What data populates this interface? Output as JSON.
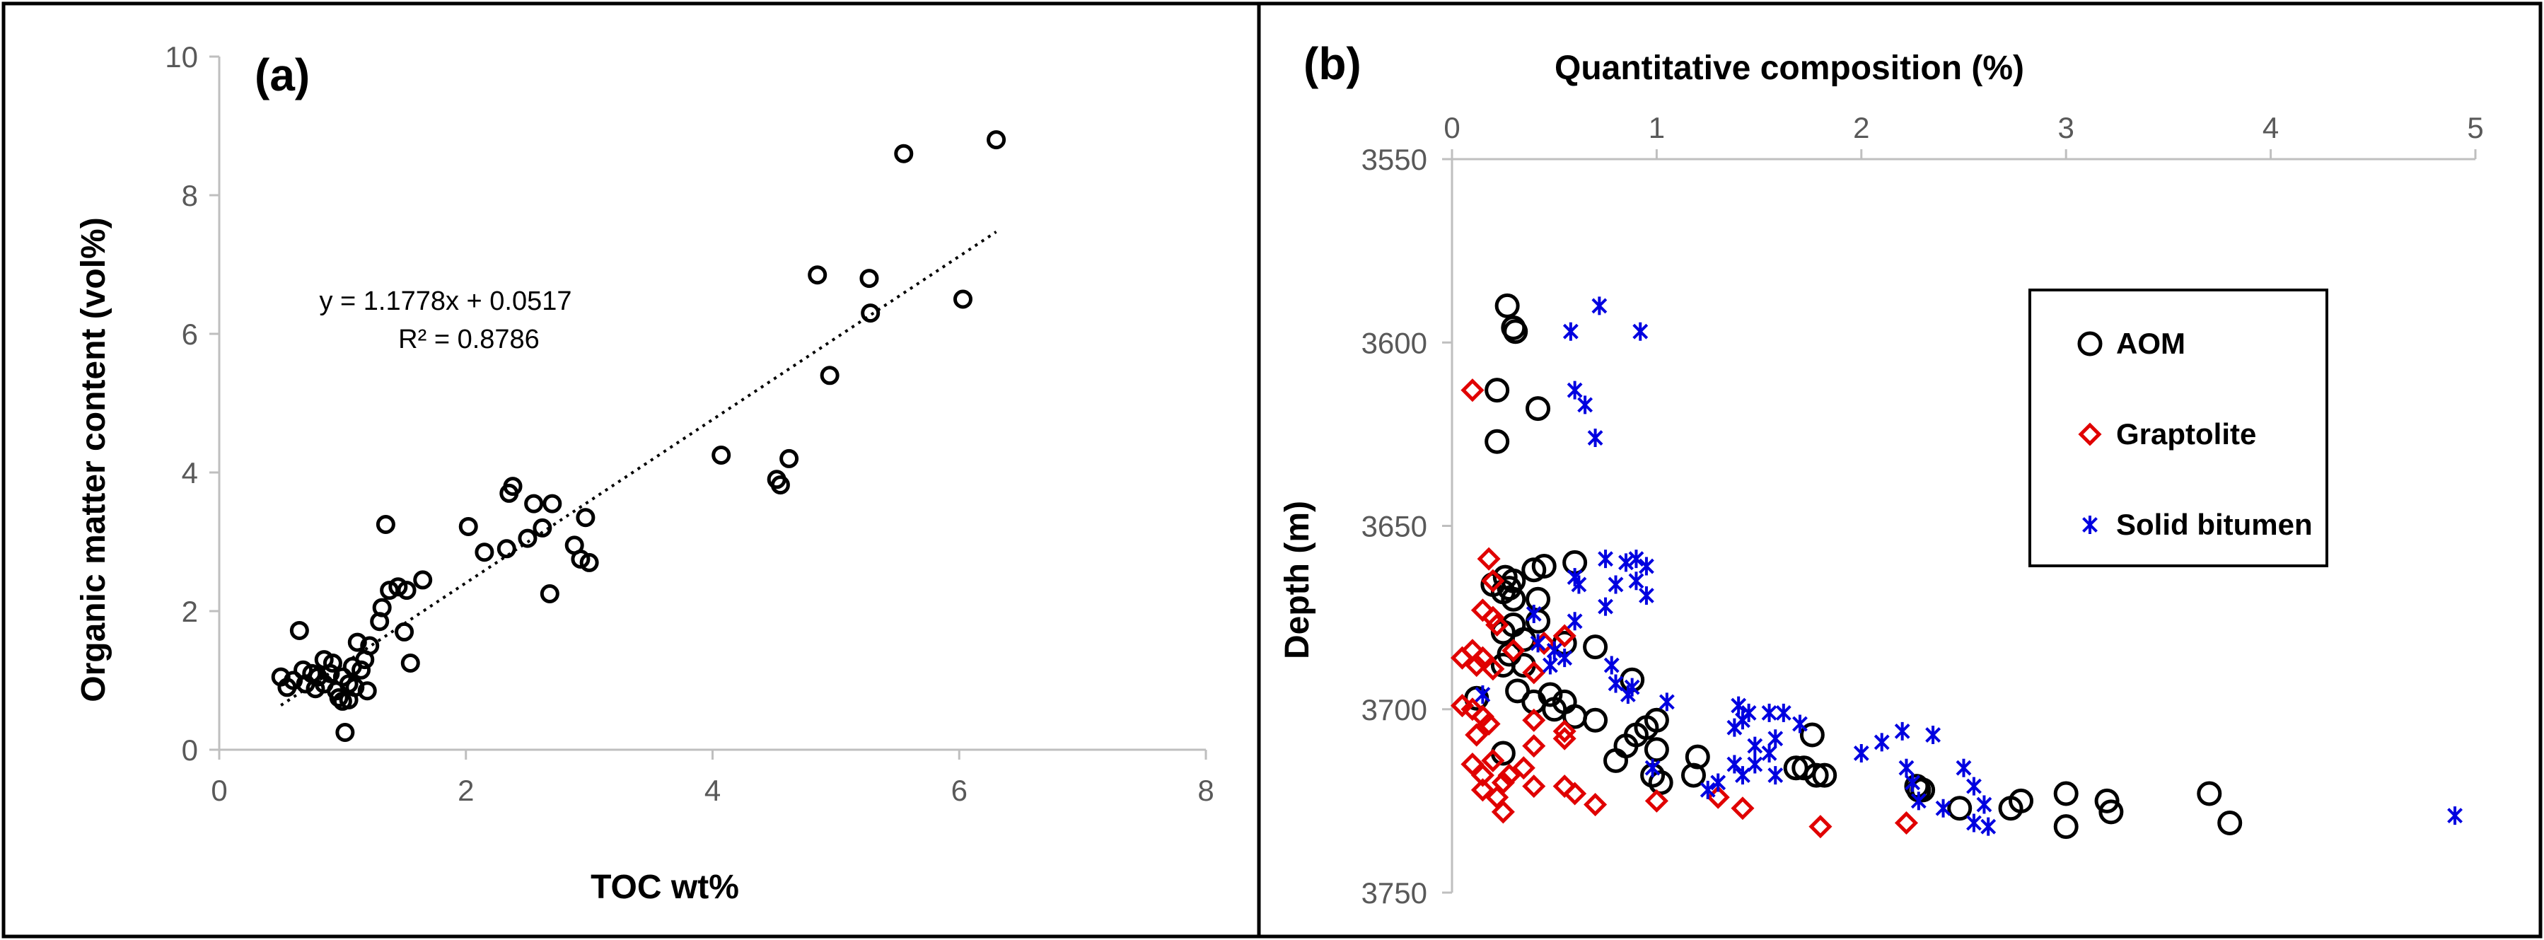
{
  "chart_data": [
    {
      "type": "scatter",
      "panel_label": "(a)",
      "title": "",
      "xlabel": "TOC wt%",
      "ylabel": "Organic matter content (vol%)",
      "xlim": [
        0,
        8
      ],
      "ylim": [
        0,
        10
      ],
      "x_ticks": [
        "0",
        "2",
        "4",
        "6",
        "8"
      ],
      "y_ticks": [
        "0",
        "2",
        "4",
        "6",
        "8",
        "10"
      ],
      "grid": false,
      "series": [
        {
          "name": "samples",
          "marker": "circle",
          "color": "#000000",
          "points": [
            [
              0.5,
              1.05
            ],
            [
              0.55,
              0.9
            ],
            [
              0.6,
              1.0
            ],
            [
              0.65,
              1.72
            ],
            [
              0.68,
              1.15
            ],
            [
              0.7,
              0.95
            ],
            [
              0.75,
              1.1
            ],
            [
              0.78,
              0.88
            ],
            [
              0.8,
              1.05
            ],
            [
              0.85,
              1.3
            ],
            [
              0.85,
              0.95
            ],
            [
              0.9,
              1.1
            ],
            [
              0.92,
              1.25
            ],
            [
              0.95,
              0.85
            ],
            [
              0.97,
              0.75
            ],
            [
              1.0,
              1.05
            ],
            [
              1.0,
              0.7
            ],
            [
              1.02,
              0.25
            ],
            [
              1.05,
              0.95
            ],
            [
              1.05,
              0.72
            ],
            [
              1.08,
              1.2
            ],
            [
              1.1,
              0.9
            ],
            [
              1.12,
              1.55
            ],
            [
              1.15,
              1.15
            ],
            [
              1.18,
              1.3
            ],
            [
              1.2,
              0.85
            ],
            [
              1.22,
              1.5
            ],
            [
              1.3,
              1.85
            ],
            [
              1.32,
              2.05
            ],
            [
              1.35,
              3.25
            ],
            [
              1.38,
              2.3
            ],
            [
              1.45,
              2.35
            ],
            [
              1.5,
              1.7
            ],
            [
              1.52,
              2.3
            ],
            [
              1.55,
              1.25
            ],
            [
              1.65,
              2.45
            ],
            [
              2.02,
              3.22
            ],
            [
              2.15,
              2.85
            ],
            [
              2.33,
              2.9
            ],
            [
              2.35,
              3.7
            ],
            [
              2.38,
              3.8
            ],
            [
              2.5,
              3.05
            ],
            [
              2.55,
              3.55
            ],
            [
              2.62,
              3.2
            ],
            [
              2.68,
              2.25
            ],
            [
              2.7,
              3.55
            ],
            [
              2.88,
              2.95
            ],
            [
              2.93,
              2.75
            ],
            [
              2.97,
              3.35
            ],
            [
              3.0,
              2.7
            ],
            [
              4.07,
              4.25
            ],
            [
              4.52,
              3.9
            ],
            [
              4.55,
              3.82
            ],
            [
              4.62,
              4.2
            ],
            [
              4.85,
              6.85
            ],
            [
              4.95,
              5.4
            ],
            [
              5.27,
              6.8
            ],
            [
              5.28,
              6.3
            ],
            [
              5.55,
              8.6
            ],
            [
              6.03,
              6.5
            ],
            [
              6.3,
              8.8
            ]
          ]
        }
      ],
      "trendline": {
        "style": "dotted",
        "slope": 1.1778,
        "intercept": 0.0517,
        "x_range": [
          0.5,
          6.3
        ],
        "equation": "y = 1.1778x + 0.0517",
        "r_squared": "R² = 0.8786"
      }
    },
    {
      "type": "scatter",
      "panel_label": "(b)",
      "title": "",
      "xlabel": "Quantitative  composition (%)",
      "ylabel": "Depth (m)",
      "xlim": [
        0,
        5
      ],
      "ylim": [
        3550,
        3750
      ],
      "y_inverted": true,
      "x_axis_position": "top",
      "x_ticks": [
        "0",
        "1",
        "2",
        "3",
        "4",
        "5"
      ],
      "y_ticks": [
        "3550",
        "3600",
        "3650",
        "3700",
        "3750"
      ],
      "grid": false,
      "legend_position": "right",
      "series": [
        {
          "name": "AOM",
          "marker": "circle",
          "color": "#000000",
          "points": [
            [
              0.27,
              3590
            ],
            [
              0.3,
              3596
            ],
            [
              0.31,
              3597
            ],
            [
              0.22,
              3613
            ],
            [
              0.42,
              3618
            ],
            [
              0.22,
              3627
            ],
            [
              0.6,
              3660
            ],
            [
              0.45,
              3661
            ],
            [
              0.4,
              3662
            ],
            [
              0.26,
              3664
            ],
            [
              0.3,
              3665
            ],
            [
              0.2,
              3666
            ],
            [
              0.28,
              3667
            ],
            [
              0.25,
              3668
            ],
            [
              0.3,
              3670
            ],
            [
              0.42,
              3670
            ],
            [
              0.42,
              3676
            ],
            [
              0.3,
              3677
            ],
            [
              0.25,
              3679
            ],
            [
              0.35,
              3681
            ],
            [
              0.55,
              3682
            ],
            [
              0.7,
              3683
            ],
            [
              0.28,
              3685
            ],
            [
              0.25,
              3688
            ],
            [
              0.35,
              3688
            ],
            [
              0.88,
              3692
            ],
            [
              0.32,
              3695
            ],
            [
              0.48,
              3696
            ],
            [
              0.12,
              3697
            ],
            [
              0.4,
              3698
            ],
            [
              0.55,
              3698
            ],
            [
              0.5,
              3700
            ],
            [
              0.6,
              3702
            ],
            [
              0.7,
              3703
            ],
            [
              1.0,
              3703
            ],
            [
              0.95,
              3705
            ],
            [
              0.9,
              3707
            ],
            [
              0.85,
              3710
            ],
            [
              1.0,
              3711
            ],
            [
              0.8,
              3714
            ],
            [
              1.2,
              3713
            ],
            [
              0.25,
              3712
            ],
            [
              1.18,
              3718
            ],
            [
              0.98,
              3718
            ],
            [
              1.02,
              3720
            ],
            [
              1.68,
              3716
            ],
            [
              1.72,
              3716
            ],
            [
              1.78,
              3718
            ],
            [
              1.82,
              3718
            ],
            [
              1.76,
              3707
            ],
            [
              2.27,
              3721
            ],
            [
              2.28,
              3722
            ],
            [
              2.3,
              3722
            ],
            [
              2.48,
              3727
            ],
            [
              2.73,
              3727
            ],
            [
              2.78,
              3725
            ],
            [
              3.0,
              3723
            ],
            [
              3.2,
              3725
            ],
            [
              3.22,
              3728
            ],
            [
              3.0,
              3732
            ],
            [
              3.7,
              3723
            ],
            [
              3.8,
              3731
            ]
          ]
        },
        {
          "name": "Graptolite",
          "marker": "diamond",
          "color": "#e00000",
          "points": [
            [
              0.1,
              3613
            ],
            [
              0.18,
              3659
            ],
            [
              0.2,
              3665
            ],
            [
              0.15,
              3673
            ],
            [
              0.2,
              3675
            ],
            [
              0.22,
              3677
            ],
            [
              0.1,
              3684
            ],
            [
              0.05,
              3686
            ],
            [
              0.15,
              3686
            ],
            [
              0.12,
              3688
            ],
            [
              0.2,
              3689
            ],
            [
              0.3,
              3684
            ],
            [
              0.45,
              3682
            ],
            [
              0.55,
              3680
            ],
            [
              0.4,
              3690
            ],
            [
              0.05,
              3699
            ],
            [
              0.1,
              3700
            ],
            [
              0.15,
              3702
            ],
            [
              0.18,
              3704
            ],
            [
              0.4,
              3703
            ],
            [
              0.55,
              3706
            ],
            [
              0.4,
              3710
            ],
            [
              0.55,
              3708
            ],
            [
              0.12,
              3707
            ],
            [
              0.1,
              3715
            ],
            [
              0.2,
              3714
            ],
            [
              0.15,
              3718
            ],
            [
              0.28,
              3718
            ],
            [
              0.35,
              3716
            ],
            [
              0.25,
              3720
            ],
            [
              0.15,
              3722
            ],
            [
              0.22,
              3724
            ],
            [
              0.4,
              3721
            ],
            [
              0.55,
              3721
            ],
            [
              0.6,
              3723
            ],
            [
              0.7,
              3726
            ],
            [
              0.25,
              3728
            ],
            [
              1.0,
              3725
            ],
            [
              1.3,
              3724
            ],
            [
              1.42,
              3727
            ],
            [
              1.8,
              3732
            ],
            [
              2.22,
              3731
            ]
          ]
        },
        {
          "name": "Solid bitumen",
          "marker": "asterisk",
          "color": "#0000e0",
          "points": [
            [
              0.72,
              3590
            ],
            [
              0.92,
              3597
            ],
            [
              0.58,
              3597
            ],
            [
              0.6,
              3613
            ],
            [
              0.65,
              3617
            ],
            [
              0.7,
              3626
            ],
            [
              0.75,
              3659
            ],
            [
              0.85,
              3660
            ],
            [
              0.9,
              3659
            ],
            [
              0.95,
              3661
            ],
            [
              0.6,
              3664
            ],
            [
              0.62,
              3666
            ],
            [
              0.8,
              3666
            ],
            [
              0.9,
              3665
            ],
            [
              0.95,
              3669
            ],
            [
              0.75,
              3672
            ],
            [
              0.6,
              3676
            ],
            [
              0.4,
              3674
            ],
            [
              0.42,
              3682
            ],
            [
              0.48,
              3688
            ],
            [
              0.55,
              3686
            ],
            [
              0.5,
              3684
            ],
            [
              0.78,
              3688
            ],
            [
              0.8,
              3693
            ],
            [
              0.88,
              3694
            ],
            [
              0.86,
              3696
            ],
            [
              0.15,
              3696
            ],
            [
              1.05,
              3698
            ],
            [
              1.4,
              3699
            ],
            [
              1.45,
              3701
            ],
            [
              1.42,
              3703
            ],
            [
              1.38,
              3705
            ],
            [
              1.55,
              3701
            ],
            [
              1.62,
              3701
            ],
            [
              1.7,
              3704
            ],
            [
              1.58,
              3708
            ],
            [
              1.48,
              3710
            ],
            [
              1.55,
              3712
            ],
            [
              1.48,
              3715
            ],
            [
              1.38,
              3715
            ],
            [
              1.42,
              3718
            ],
            [
              1.3,
              3720
            ],
            [
              1.25,
              3722
            ],
            [
              1.58,
              3718
            ],
            [
              0.98,
              3716
            ],
            [
              2.0,
              3712
            ],
            [
              2.1,
              3709
            ],
            [
              2.2,
              3706
            ],
            [
              2.35,
              3707
            ],
            [
              2.22,
              3716
            ],
            [
              2.25,
              3720
            ],
            [
              2.28,
              3725
            ],
            [
              2.4,
              3727
            ],
            [
              2.5,
              3716
            ],
            [
              2.55,
              3721
            ],
            [
              2.6,
              3726
            ],
            [
              2.55,
              3731
            ],
            [
              2.62,
              3732
            ],
            [
              4.9,
              3729
            ]
          ]
        }
      ]
    }
  ],
  "colors": {
    "aom": "#000000",
    "graptolite": "#e00000",
    "solid_bitumen": "#0000e0",
    "axis": "#bfbfbf",
    "tick_text": "#595959"
  }
}
